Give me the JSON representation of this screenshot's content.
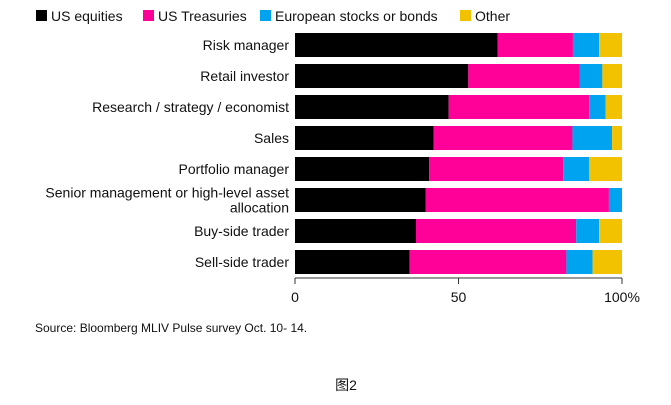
{
  "chart_data": {
    "type": "bar",
    "orientation": "horizontal",
    "stacked": true,
    "normalized": true,
    "title": "",
    "xlabel": "",
    "ylabel": "",
    "xlim": [
      0,
      100
    ],
    "xticks": [
      0,
      50,
      100
    ],
    "xtick_labels": [
      "0",
      "50",
      "100%"
    ],
    "legend_placement": "top-left",
    "grid": false,
    "categories": [
      "Risk manager",
      "Retail investor",
      "Research / strategy / economist",
      "Sales",
      "Portfolio manager",
      [
        "Senior management or high-level asset",
        "allocation"
      ],
      "Buy-side trader",
      "Sell-side trader"
    ],
    "series": [
      {
        "name": "US equities",
        "color": "#000000",
        "values": [
          62,
          53,
          47,
          42,
          41,
          40,
          37,
          35
        ]
      },
      {
        "name": "US Treasuries",
        "color": "#ff0099",
        "values": [
          23,
          34,
          43,
          42,
          41,
          56,
          49,
          48
        ]
      },
      {
        "name": "European stocks or bonds",
        "color": "#00a3f0",
        "values": [
          8,
          7,
          5,
          12,
          8,
          4,
          7,
          8
        ]
      },
      {
        "name": "Other",
        "color": "#f2c200",
        "values": [
          7,
          6,
          5,
          3,
          10,
          0,
          7,
          9
        ]
      }
    ],
    "source": "Source: Bloomberg MLIV Pulse survey Oct. 10- 14."
  },
  "caption": "图2"
}
